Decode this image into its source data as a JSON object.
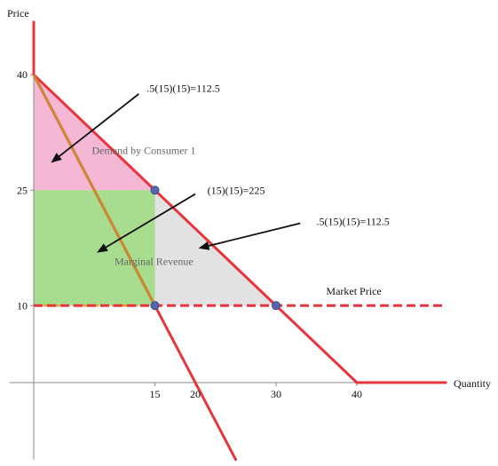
{
  "chart_data": {
    "type": "line",
    "title": "",
    "xlabel": "Quantity",
    "ylabel": "Price",
    "xlim": [
      -3,
      58
    ],
    "ylim": [
      -10,
      47
    ],
    "x_ticks": [
      15,
      20,
      30,
      40
    ],
    "y_ticks": [
      10,
      25,
      40
    ],
    "grid": false,
    "series": [
      {
        "name": "Demand by Consumer 1",
        "x": [
          0,
          40
        ],
        "y": [
          40,
          0
        ],
        "color": "#e8343c"
      },
      {
        "name": "",
        "x": [
          40,
          51
        ],
        "y": [
          0,
          0
        ],
        "color": "#e8343c"
      },
      {
        "name": "Marginal Revenue",
        "x": [
          0,
          25
        ],
        "y": [
          40,
          -10
        ],
        "color": "#e8343c"
      },
      {
        "name": "Market Price",
        "x": [
          0,
          51
        ],
        "y": [
          10,
          10
        ],
        "color": "#e8343c",
        "dashed": true
      }
    ],
    "points": [
      {
        "x": 15,
        "y": 25
      },
      {
        "x": 15,
        "y": 10
      },
      {
        "x": 30,
        "y": 10
      }
    ],
    "regions": [
      {
        "name": "pink-triangle",
        "vertices": [
          [
            0,
            40
          ],
          [
            15,
            25
          ],
          [
            0,
            25
          ]
        ],
        "color": "#f4b8d4"
      },
      {
        "name": "green-rectangle",
        "vertices": [
          [
            0,
            25
          ],
          [
            15,
            25
          ],
          [
            15,
            10
          ],
          [
            0,
            10
          ]
        ],
        "color": "#a8dc8e"
      },
      {
        "name": "gray-triangle",
        "vertices": [
          [
            15,
            25
          ],
          [
            30,
            10
          ],
          [
            15,
            10
          ]
        ],
        "color": "#e2e2e2"
      }
    ],
    "annotations": [
      {
        "text": ".5(15)(15)=112.5",
        "x": 14,
        "y": 37.8,
        "arrow_from": [
          13,
          37.5
        ],
        "arrow_to": [
          2.3,
          28.7
        ]
      },
      {
        "text": "(15)(15)=225",
        "x": 21.5,
        "y": 24.5,
        "arrow_from": [
          20,
          24.5
        ],
        "arrow_to": [
          8,
          17
        ]
      },
      {
        "text": ".5(15)(15)=112.5",
        "x": 35,
        "y": 20.5,
        "arrow_from": [
          33,
          20.7
        ],
        "arrow_to": [
          20.6,
          17.5
        ]
      },
      {
        "text": "Demand by Consumer 1",
        "x": 7.2,
        "y": 29.7
      },
      {
        "text": "Marginal Revenue",
        "x": 10,
        "y": 15.3
      },
      {
        "text": "Market Price",
        "x": 36.2,
        "y": 11.4
      }
    ]
  }
}
